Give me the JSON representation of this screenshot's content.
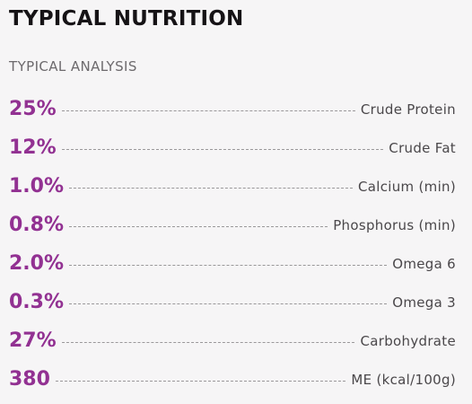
{
  "section": {
    "title": "TYPICAL NUTRITION",
    "subtitle": "TYPICAL ANALYSIS"
  },
  "colors": {
    "accent": "#923192",
    "title": "#161316",
    "subtitle": "#6d6a6d",
    "label": "#4a474a",
    "background": "#f6f5f6"
  },
  "analysis": {
    "rows": [
      {
        "value": "25%",
        "label": "Crude Protein"
      },
      {
        "value": "12%",
        "label": "Crude Fat"
      },
      {
        "value": "1.0%",
        "label": "Calcium (min)"
      },
      {
        "value": "0.8%",
        "label": "Phosphorus (min)"
      },
      {
        "value": "2.0%",
        "label": "Omega 6"
      },
      {
        "value": "0.3%",
        "label": "Omega 3"
      },
      {
        "value": "27%",
        "label": "Carbohydrate"
      },
      {
        "value": "380",
        "label": "ME (kcal/100g)"
      }
    ]
  }
}
